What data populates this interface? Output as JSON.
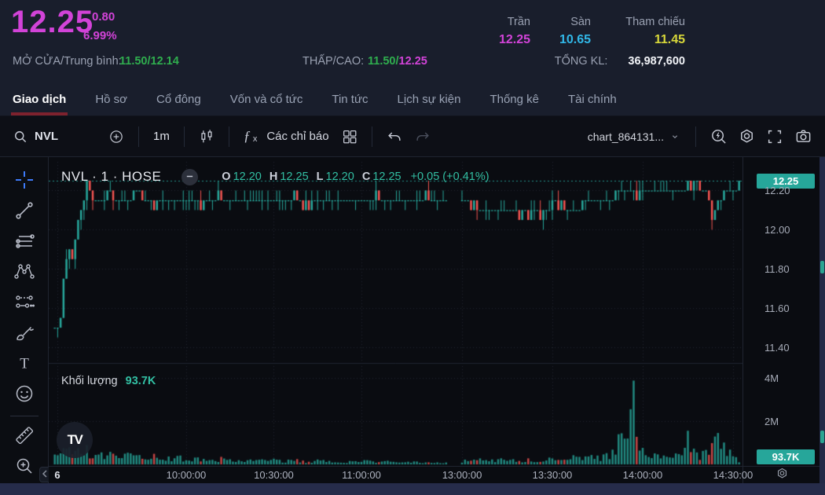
{
  "header": {
    "price": "12.25",
    "change": "0.80",
    "change_pct": "6.99%",
    "open_avg_label": "MỞ CỬA/Trung bình:",
    "open_avg": "11.50/12.14",
    "low_high_label": "THẤP/CAO:",
    "low": "11.50",
    "slash": "/",
    "high": "12.25",
    "ceiling_label": "Trần",
    "ceiling": "12.25",
    "floor_label": "Sàn",
    "floor": "10.65",
    "reference_label": "Tham chiếu",
    "reference": "11.45",
    "total_volume_label": "TỔNG KL:",
    "total_volume": "36,987,600"
  },
  "tabs": [
    {
      "label": "Giao dịch",
      "active": true
    },
    {
      "label": "Hồ sơ",
      "active": false
    },
    {
      "label": "Cổ đông",
      "active": false
    },
    {
      "label": "Vốn và cổ tức",
      "active": false
    },
    {
      "label": "Tin tức",
      "active": false
    },
    {
      "label": "Lịch sự kiện",
      "active": false
    },
    {
      "label": "Thống kê",
      "active": false
    },
    {
      "label": "Tài chính",
      "active": false
    }
  ],
  "toolbar": {
    "symbol": "NVL",
    "interval": "1m",
    "fx_f": "ƒ",
    "fx_x": "x",
    "indicators_label": "Các chỉ báo",
    "chart_name": "chart_864131..."
  },
  "left_toolbar": {
    "tools": [
      "crosshair",
      "trend-line",
      "horizontal-lines",
      "xabcd-pattern",
      "forecast",
      "brush",
      "text",
      "emoji",
      "ruler",
      "zoom-in"
    ]
  },
  "legend": {
    "title": "NVL · 1 · HOSE",
    "o_label": "O",
    "o": "12.20",
    "h_label": "H",
    "h": "12.25",
    "l_label": "L",
    "l": "12.20",
    "c_label": "C",
    "c": "12.25",
    "change": "+0.05 (+0.41%)"
  },
  "volume_pane": {
    "label": "Khối lượng",
    "value": "93.7K"
  },
  "axes": {
    "price_badge": "12.25",
    "price_ticks": [
      {
        "label": "12.20",
        "p": 12.2
      },
      {
        "label": "12.00",
        "p": 12.0
      },
      {
        "label": "11.80",
        "p": 11.8
      },
      {
        "label": "11.60",
        "p": 11.6
      },
      {
        "label": "11.40",
        "p": 11.4
      }
    ],
    "volume_ticks": [
      {
        "label": "4M",
        "v": 4000
      },
      {
        "label": "2M",
        "v": 2000
      }
    ],
    "volume_badge": "93.7K",
    "time_ticks": [
      {
        "label": "6",
        "m": 1,
        "strong": true
      },
      {
        "label": "10:00:00",
        "m": 45
      },
      {
        "label": "10:30:00",
        "m": 75
      },
      {
        "label": "11:00:00",
        "m": 105
      },
      {
        "label": "13:00:00",
        "m": 135
      },
      {
        "label": "13:30:00",
        "m": 165
      },
      {
        "label": "14:00:00",
        "m": 195
      },
      {
        "label": "14:30:00",
        "m": 225
      }
    ]
  },
  "chart_data": {
    "type": "candlestick",
    "symbol": "NVL",
    "exchange": "HOSE",
    "interval": "1",
    "ohlc_last": {
      "open": 12.2,
      "high": 12.25,
      "low": 12.2,
      "close": 12.25,
      "change": "+0.05 (+0.41%)"
    },
    "day": {
      "open": 11.5,
      "avg": 12.14,
      "low": 11.5,
      "high": 12.25,
      "ceiling": 12.25,
      "floor": 10.65,
      "reference": 11.45,
      "total_volume": 36987600
    },
    "session": {
      "start": "09:15",
      "break_start": "11:30",
      "break_end": "13:00",
      "visible_end": "14:32"
    },
    "y_axis": {
      "last_price": 12.25,
      "tick_step": 0.2,
      "range_low": 11.33,
      "range_high": 12.33
    },
    "volume_axis": {
      "max_m": 4.4,
      "current_k": 93.7
    },
    "tick_size": 0.05,
    "candle_count": 228,
    "price_keypoints": [
      [
        0,
        11.5
      ],
      [
        2,
        11.55
      ],
      [
        3,
        11.75
      ],
      [
        5,
        11.9
      ],
      [
        6,
        11.85
      ],
      [
        7,
        11.95
      ],
      [
        9,
        12.1
      ],
      [
        11,
        12.25
      ],
      [
        13,
        12.15
      ],
      [
        18,
        12.18
      ],
      [
        24,
        12.15
      ],
      [
        30,
        12.18
      ],
      [
        34,
        12.12
      ],
      [
        38,
        12.16
      ],
      [
        44,
        12.15
      ],
      [
        50,
        12.13
      ],
      [
        56,
        12.16
      ],
      [
        62,
        12.14
      ],
      [
        68,
        12.16
      ],
      [
        74,
        12.15
      ],
      [
        80,
        12.17
      ],
      [
        86,
        12.13
      ],
      [
        92,
        12.16
      ],
      [
        98,
        12.15
      ],
      [
        104,
        12.15
      ],
      [
        112,
        12.16
      ],
      [
        120,
        12.15
      ],
      [
        127,
        12.17
      ],
      [
        134,
        12.16
      ],
      [
        136,
        12.12
      ],
      [
        141,
        12.1
      ],
      [
        146,
        12.08
      ],
      [
        152,
        12.1
      ],
      [
        157,
        12.08
      ],
      [
        162,
        12.1
      ],
      [
        166,
        12.12
      ],
      [
        171,
        12.1
      ],
      [
        176,
        12.14
      ],
      [
        181,
        12.15
      ],
      [
        186,
        12.17
      ],
      [
        190,
        12.2
      ],
      [
        194,
        12.18
      ],
      [
        198,
        12.2
      ],
      [
        203,
        12.19
      ],
      [
        208,
        12.21
      ],
      [
        213,
        12.22
      ],
      [
        216,
        12.18
      ],
      [
        218,
        12.08
      ],
      [
        220,
        12.15
      ],
      [
        222,
        12.2
      ],
      [
        225,
        12.2
      ],
      [
        226,
        12.2
      ],
      [
        227,
        12.25
      ]
    ],
    "volume_keypoints_k": [
      [
        0,
        320
      ],
      [
        2,
        480
      ],
      [
        4,
        640
      ],
      [
        6,
        520
      ],
      [
        9,
        560
      ],
      [
        11,
        620
      ],
      [
        14,
        380
      ],
      [
        18,
        460
      ],
      [
        22,
        300
      ],
      [
        26,
        410
      ],
      [
        30,
        280
      ],
      [
        34,
        360
      ],
      [
        38,
        240
      ],
      [
        42,
        310
      ],
      [
        46,
        200
      ],
      [
        50,
        270
      ],
      [
        54,
        180
      ],
      [
        58,
        250
      ],
      [
        62,
        160
      ],
      [
        66,
        230
      ],
      [
        70,
        150
      ],
      [
        74,
        210
      ],
      [
        78,
        130
      ],
      [
        82,
        190
      ],
      [
        86,
        120
      ],
      [
        90,
        170
      ],
      [
        94,
        110
      ],
      [
        98,
        150
      ],
      [
        102,
        100
      ],
      [
        106,
        140
      ],
      [
        110,
        95
      ],
      [
        114,
        130
      ],
      [
        118,
        85
      ],
      [
        122,
        120
      ],
      [
        126,
        80
      ],
      [
        130,
        105
      ],
      [
        134,
        95
      ],
      [
        136,
        190
      ],
      [
        139,
        150
      ],
      [
        142,
        230
      ],
      [
        145,
        170
      ],
      [
        148,
        270
      ],
      [
        151,
        190
      ],
      [
        154,
        140
      ],
      [
        157,
        210
      ],
      [
        160,
        130
      ],
      [
        163,
        190
      ],
      [
        166,
        260
      ],
      [
        169,
        190
      ],
      [
        172,
        290
      ],
      [
        175,
        210
      ],
      [
        178,
        330
      ],
      [
        181,
        270
      ],
      [
        184,
        430
      ],
      [
        186,
        620
      ],
      [
        188,
        1550
      ],
      [
        190,
        950
      ],
      [
        192,
        4000
      ],
      [
        193,
        1250
      ],
      [
        195,
        720
      ],
      [
        197,
        520
      ],
      [
        199,
        400
      ],
      [
        202,
        310
      ],
      [
        205,
        460
      ],
      [
        208,
        390
      ],
      [
        210,
        1450
      ],
      [
        212,
        620
      ],
      [
        214,
        400
      ],
      [
        216,
        520
      ],
      [
        218,
        950
      ],
      [
        220,
        1500
      ],
      [
        222,
        720
      ],
      [
        224,
        460
      ],
      [
        226,
        260
      ],
      [
        227,
        94
      ]
    ],
    "colors": {
      "up": "#26a69a",
      "down": "#ef5350",
      "price_line": "#26a69a",
      "grid": "rgba(125,135,160,0.20)"
    }
  }
}
